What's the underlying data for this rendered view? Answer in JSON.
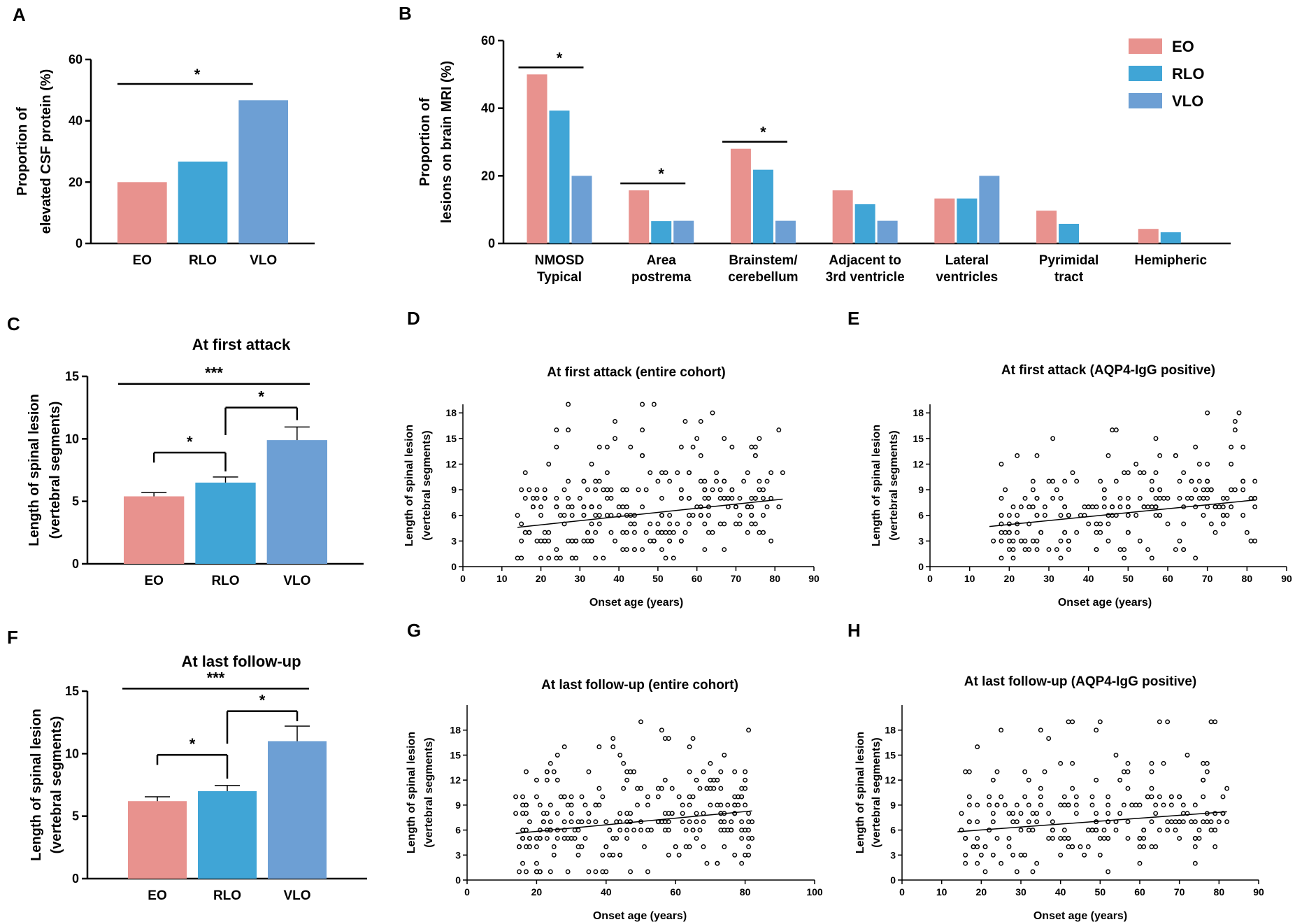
{
  "colors": {
    "EO": "#e8928e",
    "RLO": "#40a5d6",
    "VLO": "#6d9fd4"
  },
  "chart_data": [
    {
      "id": "A",
      "panel_label": "A",
      "type": "bar",
      "title": "",
      "ylabel_lines": [
        "Proportion of",
        "elevated CSF protein (%)"
      ],
      "xlabel": "",
      "categories": [
        "EO",
        "RLO",
        "VLO"
      ],
      "values": [
        20,
        26.7,
        46.7
      ],
      "ylim": [
        0,
        60
      ],
      "yticks": [
        0,
        20,
        40,
        60
      ],
      "significance": [
        {
          "from": 0,
          "to": 2,
          "label": "*"
        }
      ]
    },
    {
      "id": "B",
      "panel_label": "B",
      "type": "bar",
      "title": "",
      "ylabel_lines": [
        "Proportion of",
        "lesions on brain MRI (%)"
      ],
      "categories": [
        [
          "NMOSD",
          "Typical"
        ],
        [
          "Area",
          "postrema"
        ],
        [
          "Brainstem/",
          "cerebellum"
        ],
        [
          "Adjacent to",
          "3rd  ventricle"
        ],
        [
          "Lateral",
          "ventricles"
        ],
        [
          "Pyrimidal",
          "tract"
        ],
        [
          "Hemipheric"
        ]
      ],
      "series": [
        {
          "name": "EO",
          "values": [
            50,
            15.7,
            28,
            15.7,
            13.3,
            9.7,
            4.3
          ]
        },
        {
          "name": "RLO",
          "values": [
            39.3,
            6.6,
            21.8,
            11.6,
            13.3,
            5.8,
            3.3
          ]
        },
        {
          "name": "VLO",
          "values": [
            20,
            6.7,
            6.7,
            6.7,
            20,
            0,
            0
          ]
        }
      ],
      "ylim": [
        0,
        60
      ],
      "yticks": [
        0,
        20,
        40,
        60
      ],
      "significance": [
        {
          "group": 0,
          "label": "*"
        },
        {
          "group": 1,
          "label": "*"
        },
        {
          "group": 2,
          "label": "*"
        }
      ],
      "legend_position": "top-right"
    },
    {
      "id": "C",
      "panel_label": "C",
      "type": "bar",
      "title": "At first attack",
      "ylabel_lines": [
        "Length of spinal lesion",
        "(vertebral segments)"
      ],
      "categories": [
        "EO",
        "RLO",
        "VLO"
      ],
      "values": [
        5.4,
        6.5,
        9.9
      ],
      "errors": [
        0.3,
        0.45,
        1.05
      ],
      "ylim": [
        0,
        15
      ],
      "yticks": [
        0,
        5,
        10,
        15
      ],
      "significance": [
        {
          "from": 0,
          "to": 1,
          "label": "*",
          "y": 8.9,
          "drop_from": 8.1,
          "drop_to": 7.4
        },
        {
          "from": 1,
          "to": 2,
          "label": "*",
          "y": 12.5,
          "drop_from": 10.3,
          "drop_to": 11.5
        },
        {
          "from": 0,
          "to": 2,
          "label": "***",
          "y": 14.4
        }
      ]
    },
    {
      "id": "D",
      "panel_label": "D",
      "type": "scatter",
      "title": "At first attack (entire cohort)",
      "xlabel": "Onset age (years)",
      "ylabel_lines": [
        "Length of spinal lesion",
        "(vertebral segments)"
      ],
      "xlim": [
        0,
        90
      ],
      "xticks": [
        0,
        10,
        20,
        30,
        40,
        50,
        60,
        70,
        80,
        90
      ],
      "ylim": [
        0,
        19
      ],
      "yticks": [
        0,
        3,
        6,
        9,
        12,
        15,
        18
      ],
      "trend": [
        [
          14,
          4.6
        ],
        [
          82,
          7.9
        ]
      ],
      "seed": 101,
      "n": 260,
      "x_range": [
        14,
        82
      ]
    },
    {
      "id": "E",
      "panel_label": "E",
      "type": "scatter",
      "title": "At first attack (AQP4-IgG positive)",
      "xlabel": "Onset age  (years)",
      "ylabel_lines": [
        "Length of spinal lesion",
        "(vertebral segments)"
      ],
      "xlim": [
        0,
        90
      ],
      "xticks": [
        0,
        10,
        20,
        30,
        40,
        50,
        60,
        70,
        80,
        90
      ],
      "ylim": [
        0,
        19
      ],
      "yticks": [
        0,
        3,
        6,
        9,
        12,
        15,
        18
      ],
      "trend": [
        [
          15,
          4.7
        ],
        [
          82,
          7.8
        ]
      ],
      "seed": 202,
      "n": 215,
      "x_range": [
        15,
        82
      ]
    },
    {
      "id": "F",
      "panel_label": "F",
      "type": "bar",
      "title": "At last follow-up",
      "ylabel_lines": [
        "Length of spinal lesion",
        "(vertebral segments)"
      ],
      "categories": [
        "EO",
        "RLO",
        "VLO"
      ],
      "values": [
        6.2,
        7.0,
        11.0
      ],
      "errors": [
        0.35,
        0.45,
        1.2
      ],
      "ylim": [
        0,
        15
      ],
      "yticks": [
        0,
        5,
        10,
        15
      ],
      "significance": [
        {
          "from": 0,
          "to": 1,
          "label": "*",
          "y": 9.9,
          "drop_from": 9.1,
          "drop_to": 8.0
        },
        {
          "from": 1,
          "to": 2,
          "label": "*",
          "y": 13.4,
          "drop_from": 10.8,
          "drop_to": 12.6
        },
        {
          "from": 0,
          "to": 2,
          "label": "***",
          "y": 15.2
        }
      ]
    },
    {
      "id": "G",
      "panel_label": "G",
      "type": "scatter",
      "title": "At last follow-up (entire cohort)",
      "xlabel": "Onset age (years)",
      "ylabel_lines": [
        "Length of spinal lesion",
        "(vertebral segments)"
      ],
      "xlim": [
        0,
        100
      ],
      "xticks": [
        0,
        20,
        40,
        60,
        80,
        100
      ],
      "ylim": [
        0,
        21
      ],
      "yticks": [
        0,
        3,
        6,
        9,
        12,
        15,
        18
      ],
      "trend": [
        [
          14,
          5.6
        ],
        [
          82,
          8.3
        ]
      ],
      "seed": 303,
      "n": 260,
      "x_range": [
        14,
        82
      ]
    },
    {
      "id": "H",
      "panel_label": "H",
      "type": "scatter",
      "title": "At last follow-up (AQP4-IgG positive)",
      "xlabel": "Onset age  (years)",
      "ylabel_lines": [
        "Length of spinal lesion",
        "(vertebral segments)"
      ],
      "xlim": [
        0,
        90
      ],
      "xticks": [
        0,
        10,
        20,
        30,
        40,
        50,
        60,
        70,
        80,
        90
      ],
      "ylim": [
        0,
        21
      ],
      "yticks": [
        0,
        3,
        6,
        9,
        12,
        15,
        18
      ],
      "trend": [
        [
          14,
          5.8
        ],
        [
          82,
          8.2
        ]
      ],
      "seed": 404,
      "n": 215,
      "x_range": [
        14,
        82
      ]
    }
  ]
}
